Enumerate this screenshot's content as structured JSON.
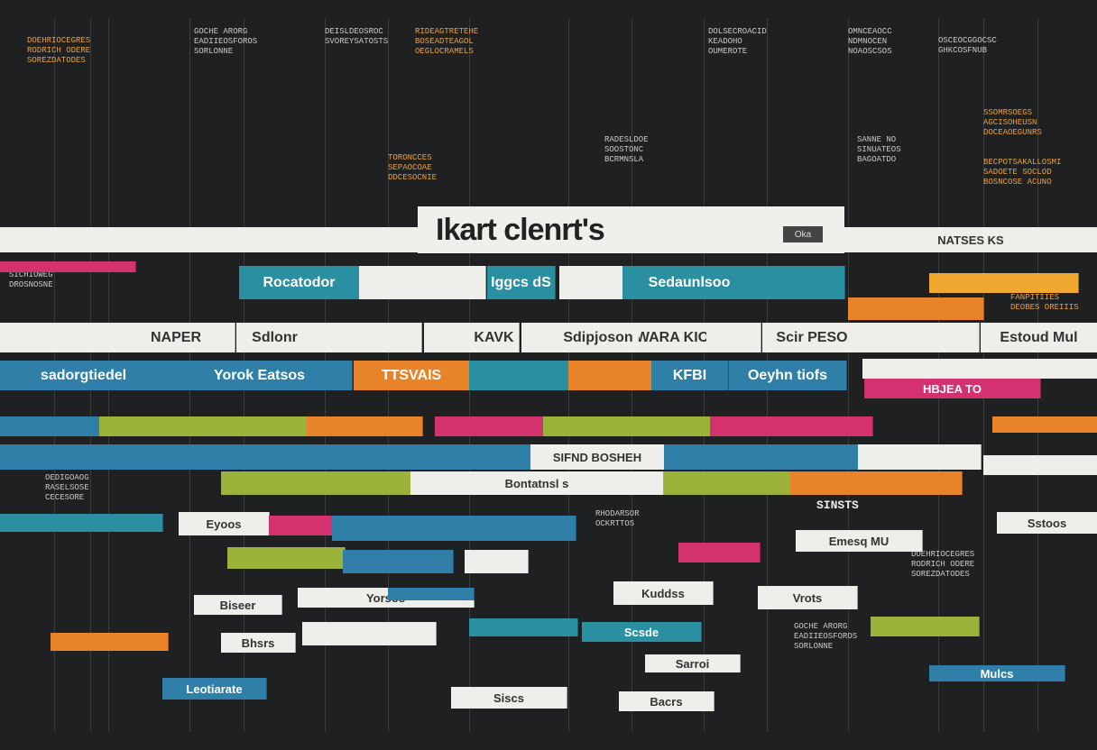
{
  "title": "Ikart clenrt's",
  "title_badge": "Oka",
  "colors": {
    "background": "#1f2021",
    "teal": "#2a8fa0",
    "blue": "#2f7fa8",
    "orange": "#e8832a",
    "pink": "#d4326e",
    "lime": "#9bb33a",
    "white": "#eeeeea",
    "yellow": "#f0a830",
    "text_orange": "#e8a040"
  },
  "bar_labels": [
    "Rocatodor",
    "Sedaunlsoo",
    "sadorgtiedel",
    "Yorok  Eatsos",
    "TTSVAIS",
    "KFBI",
    "Oeyhn tiofs",
    "HBJEA TO",
    "NATSES KS",
    "NAPER",
    "Sdlonr",
    "KAVK",
    "Sdipjoson",
    "WARA KIO",
    "Scir PESO",
    "Estoud Mul",
    "SIFND BOSHEH",
    "Bontatnsl s",
    "SINSTS",
    "Eyoos",
    "Sstoos",
    "Yorsos",
    "Kuddss",
    "Vrots",
    "Biseer",
    "Bhsrs",
    "Leotiarate",
    "Siscs",
    "Bacrs",
    "Sarroi",
    "Emesq MU",
    "Mulcs",
    "Scsde",
    "Iggcs dS"
  ],
  "text_blocks": [
    "DOEHRIOCEGRES\nRODRICH ODERE\nSOREZDATODES",
    "GOCHE ARORG\nEADIIEOSFOROS\nSORLONNE",
    "DEISLDEOSROC\nSVOREYSATOSTS",
    "RIDEAGTRETEHE\nBOSEADTEAGOL\nOEGLOCRAMELS",
    "DOLSECROACID\nKEADOHO\nOUMEROTE",
    "OMNCEAOCC\nNDMNOCEN\nNOAOSCSOS",
    "OSCEOCGGOCSC\nGHKCOSFNUB",
    "SSOMRSOEGS\nAGCISOHEUSN\nDOCEAOEGUNRS",
    "BECPOTSAKALLOSMI\nSADOETE SOCLOD\nBOSNCOSE ACUNO",
    "TORONCCES\nSEPAOCOAE\nDDCESOCNIE",
    "RADESLDOE\nSOOSTONC\nBCRMNSLA",
    "SANNE NO\nSINUATEOS\nBAGOATDO",
    "SICHIOWEG\nDROSNOSNE",
    "FANPITIIES\nDEOBES OREIIIS",
    "OEDIGOAOG\nRASELSOSE\nCECESORE",
    "RHODARSOR\nOCKRTTOS"
  ]
}
